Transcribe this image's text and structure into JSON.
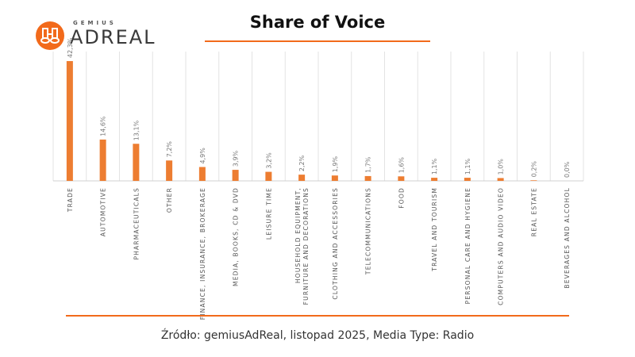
{
  "logo": {
    "top": "GEMIUS",
    "name": "ADREAL"
  },
  "header": {
    "title": "Share of Voice"
  },
  "footer": {
    "source": "Źródło: gemiusAdReal, listopad 2025, Media Type: Radio"
  },
  "colors": {
    "bar": "#ed7d31",
    "accent": "#f26a1b"
  },
  "chart_data": {
    "type": "bar",
    "title": "Share of Voice",
    "grid": "vertical",
    "categories": [
      "TRADE",
      "AUTOMOTIVE",
      "PHARMACEUTICALS",
      "OTHER",
      "FINANCE, INSURANCE, BROKERAGE",
      "MEDIA, BOOKS, CD & DVD",
      "LEISURE TIME",
      "HOUSEHOLD EQUIPMENT, FURNITURE AND DECORATIONS",
      "CLOTHING AND ACCESSORIES",
      "TELECOMMUNICATIONS",
      "FOOD",
      "TRAVEL AND TOURISM",
      "PERSONAL CARE AND HYGIENE",
      "COMPUTERS AND AUDIO VIDEO",
      "REAL ESTATE",
      "BEVERAGES AND ALCOHOL"
    ],
    "values": [
      42.3,
      14.6,
      13.1,
      7.2,
      4.9,
      3.9,
      3.2,
      2.2,
      1.9,
      1.7,
      1.6,
      1.1,
      1.1,
      1.0,
      0.2,
      0.0
    ],
    "labels": [
      "42,3%",
      "14,6%",
      "13,1%",
      "7,2%",
      "4,9%",
      "3,9%",
      "3,2%",
      "2,2%",
      "1,9%",
      "1,7%",
      "1,6%",
      "1,1%",
      "1,1%",
      "1,0%",
      "0,2%",
      "0,0%"
    ],
    "ylim": [
      0,
      42.3
    ]
  }
}
